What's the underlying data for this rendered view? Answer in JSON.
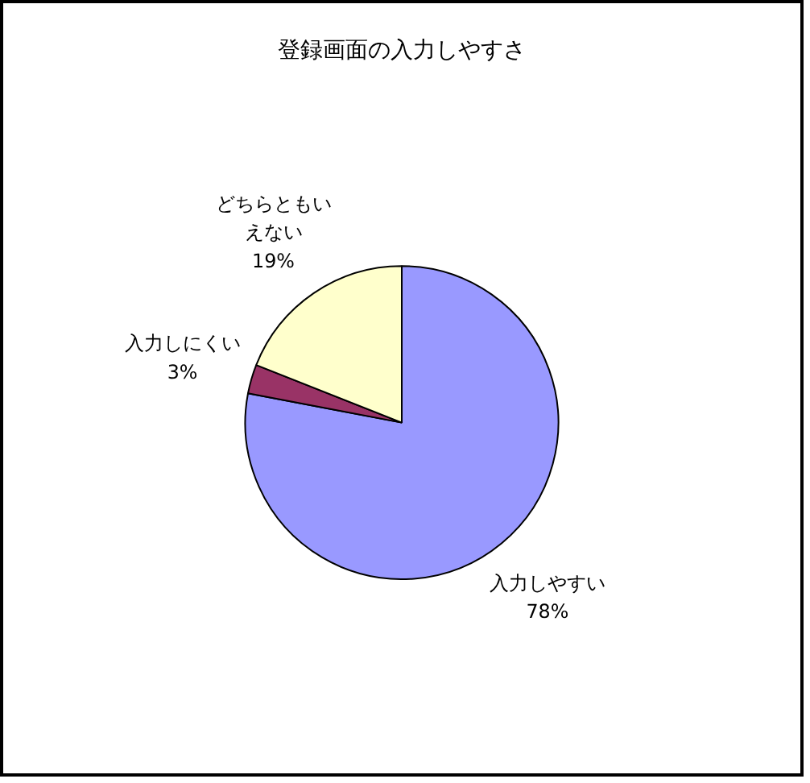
{
  "chart_data": {
    "type": "pie",
    "title": "登録画面の入力しやすさ",
    "categories": [
      "入力しやすい",
      "入力しにくい",
      "どちらともいえない"
    ],
    "values": [
      78,
      3,
      19
    ],
    "colors": [
      "#9999ff",
      "#993366",
      "#ffffcc"
    ],
    "value_labels": [
      "78%",
      "3%",
      "19%"
    ],
    "legend": false
  }
}
